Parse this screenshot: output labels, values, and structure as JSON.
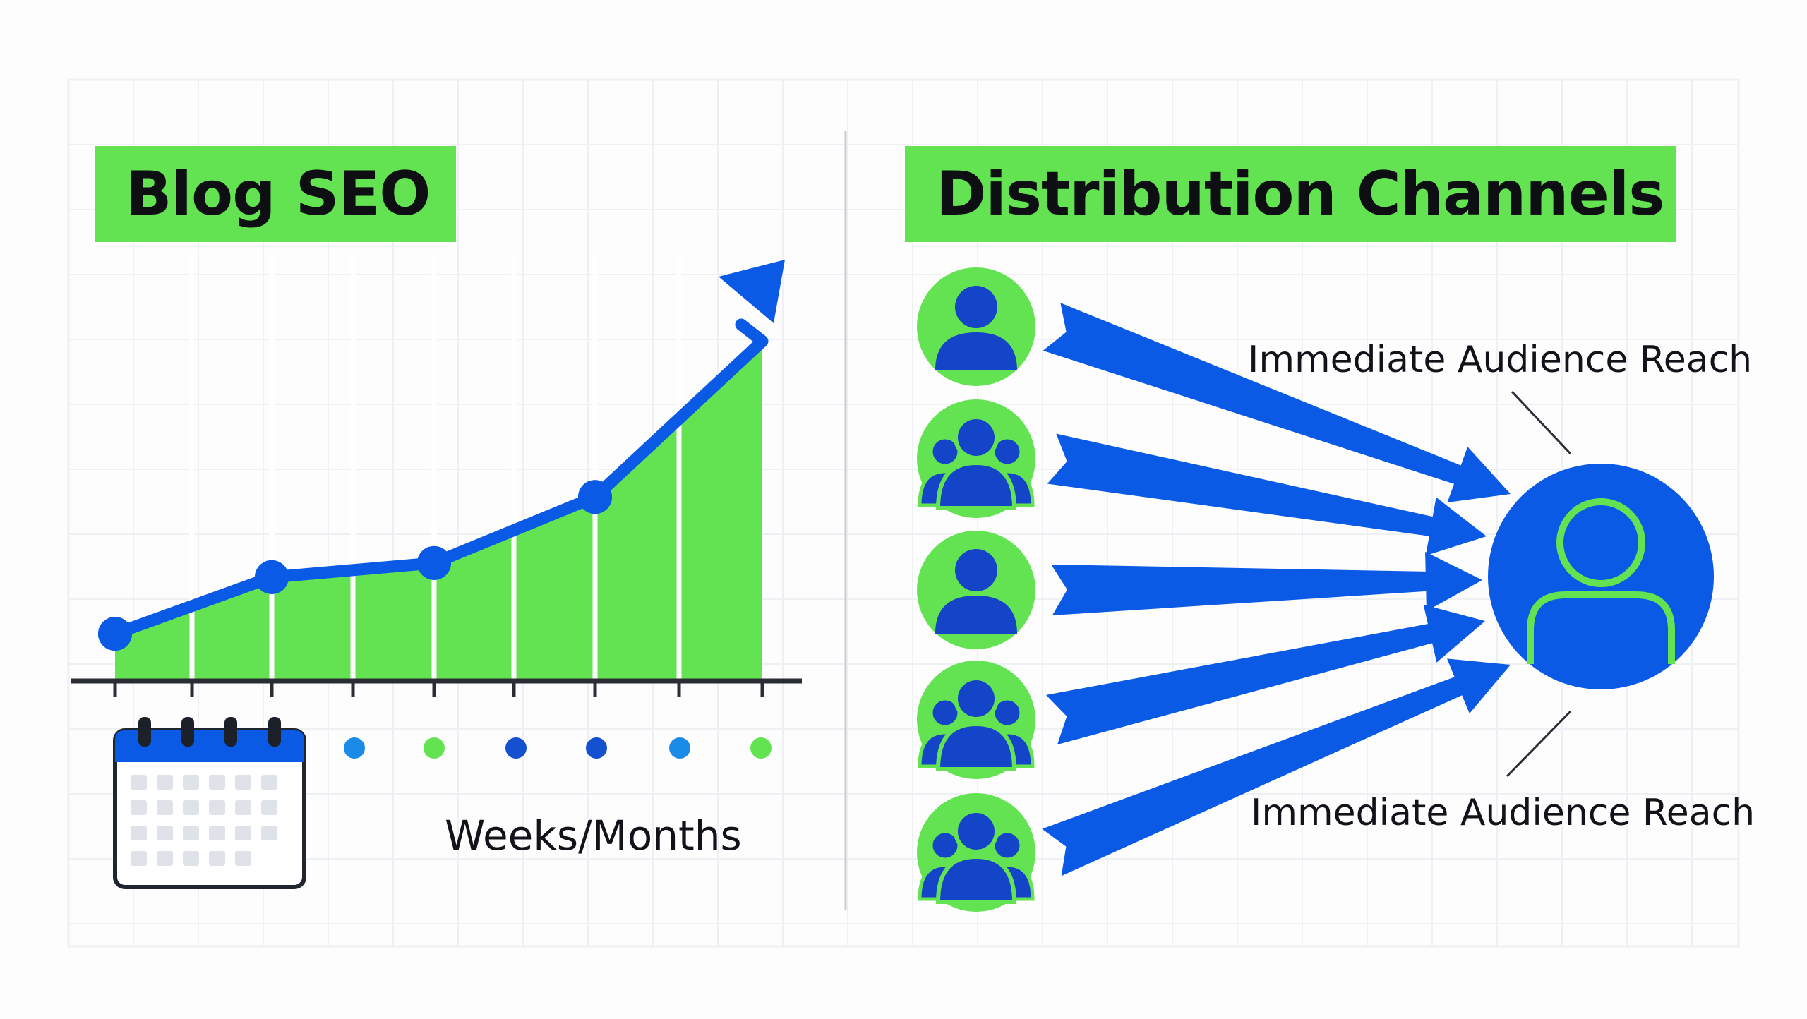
{
  "left_panel": {
    "title": "Blog SEO",
    "time_axis_label": "Weeks/Months"
  },
  "right_panel": {
    "title": "Distribution Channels",
    "callouts": [
      "Immediate Audience Reach",
      "Immediate Audience Reach"
    ],
    "sources": [
      "single",
      "group",
      "single",
      "group",
      "group"
    ]
  },
  "chart_data": {
    "type": "area",
    "series": [
      {
        "values": [
          1,
          2.2,
          2.5,
          3.9,
          7.2
        ]
      }
    ],
    "ylim": [
      0,
      8
    ],
    "grid": true,
    "trend_arrow": true
  },
  "colors": {
    "accent_green": "#63e352",
    "accent_blue": "#0a5ae6",
    "dark_blue": "#1444c8",
    "axis": "#2a2d33",
    "grid": "#eef0f3"
  },
  "icons": [
    "calendar-icon",
    "user-icon",
    "user-group-icon",
    "target-user-icon"
  ]
}
